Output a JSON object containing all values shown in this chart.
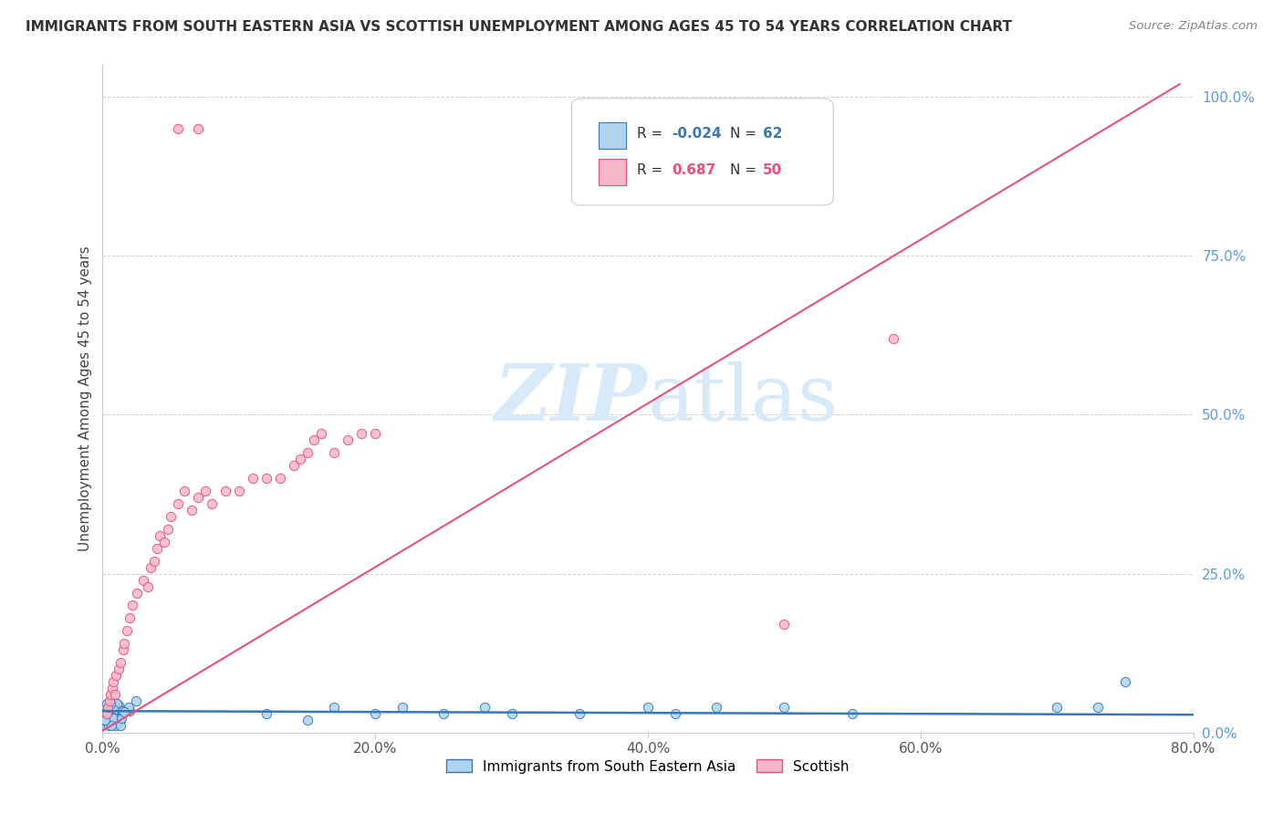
{
  "title": "IMMIGRANTS FROM SOUTH EASTERN ASIA VS SCOTTISH UNEMPLOYMENT AMONG AGES 45 TO 54 YEARS CORRELATION CHART",
  "source": "Source: ZipAtlas.com",
  "ylabel": "Unemployment Among Ages 45 to 54 years",
  "xlim": [
    0.0,
    0.8
  ],
  "ylim": [
    0.0,
    1.05
  ],
  "xtick_labels": [
    "0.0%",
    "20.0%",
    "40.0%",
    "60.0%",
    "80.0%"
  ],
  "xtick_values": [
    0.0,
    0.2,
    0.4,
    0.6,
    0.8
  ],
  "ytick_labels": [
    "0.0%",
    "25.0%",
    "50.0%",
    "75.0%",
    "100.0%"
  ],
  "ytick_values": [
    0.0,
    0.25,
    0.5,
    0.75,
    1.0
  ],
  "blue_color": "#aed4f0",
  "pink_color": "#f5b8c8",
  "blue_line_color": "#3878b8",
  "pink_line_color": "#e8507a",
  "title_color": "#333333",
  "source_color": "#888888",
  "ytick_color": "#5b9bd5",
  "background_color": "#ffffff",
  "grid_color": "#cccccc",
  "watermark_color": "#d8eaf8",
  "legend_box_color": "#f0f0f0",
  "legend_border_color": "#cccccc"
}
